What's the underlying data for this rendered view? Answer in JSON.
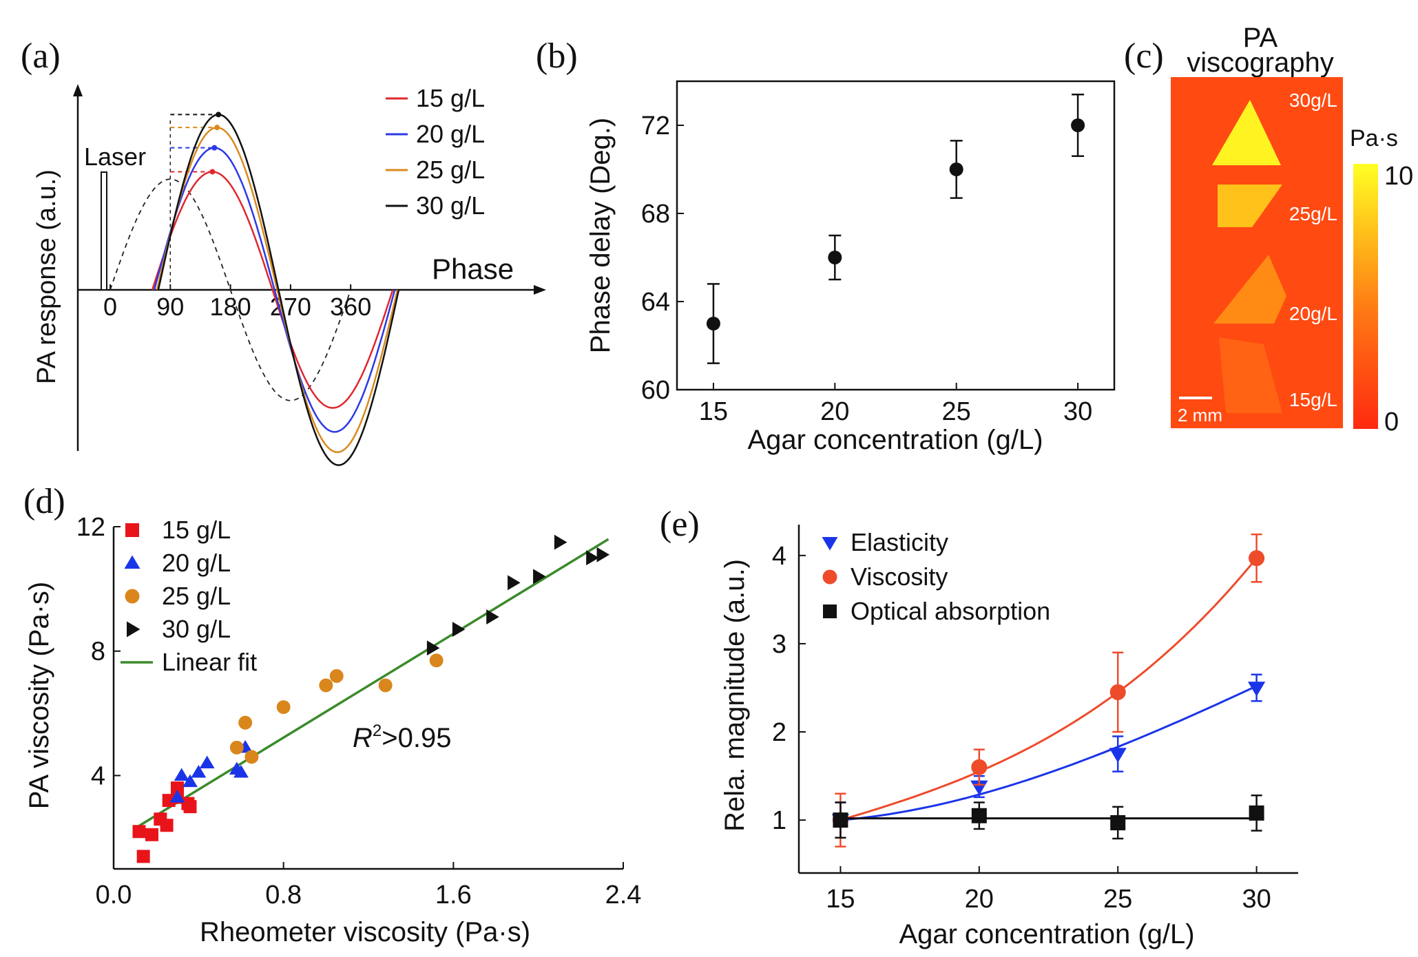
{
  "chart_data": [
    {
      "panel": "(a)",
      "type": "line",
      "ylabel": "PA response (a.u.)",
      "xlabel": "Phase",
      "xticks": [
        "0",
        "90",
        "180",
        "270",
        "360"
      ],
      "laser_label": "Laser",
      "series": [
        {
          "name": "15 g/L",
          "color": "#e0262e",
          "amplitude": 0.64,
          "phase_delay": 63
        },
        {
          "name": "20 g/L",
          "color": "#2b39e6",
          "amplitude": 0.77,
          "phase_delay": 66
        },
        {
          "name": "25 g/L",
          "color": "#d98a1c",
          "amplitude": 0.88,
          "phase_delay": 70
        },
        {
          "name": "30 g/L",
          "color": "#111111",
          "amplitude": 0.95,
          "phase_delay": 72
        }
      ],
      "reference": {
        "name": "excitation",
        "amplitude": 0.6,
        "style": "dashed"
      }
    },
    {
      "panel": "(b)",
      "type": "scatter",
      "xlabel": "Agar concentration (g/L)",
      "ylabel": "Phase delay (Deg.)",
      "x": [
        15,
        20,
        25,
        30
      ],
      "y": [
        63,
        66,
        70,
        72
      ],
      "yerr": [
        1.8,
        1.0,
        1.3,
        1.4
      ],
      "xticks": [
        "15",
        "20",
        "25",
        "30"
      ],
      "yticks": [
        "60",
        "64",
        "68",
        "72"
      ],
      "xlim": [
        13.5,
        31.5
      ],
      "ylim": [
        60,
        74
      ]
    },
    {
      "panel": "(c)",
      "type": "heatmap",
      "title_line1": "PA",
      "title_line2": "viscography",
      "regions": [
        {
          "label": "30g/L",
          "value": 9.5
        },
        {
          "label": "25g/L",
          "value": 7.5
        },
        {
          "label": "20g/L",
          "value": 5.2
        },
        {
          "label": "15g/L",
          "value": 3.2
        }
      ],
      "scalebar_label": "2 mm",
      "colorbar": {
        "unit": "Pa·s",
        "min_label": "0",
        "max_label": "10",
        "min": 0,
        "max": 10
      }
    },
    {
      "panel": "(d)",
      "type": "scatter",
      "xlabel": "Rheometer viscosity (Pa·s)",
      "ylabel": "PA viscosity (Pa·s)",
      "xticks": [
        "0.0",
        "0.8",
        "1.6",
        "2.4"
      ],
      "yticks": [
        "4",
        "8",
        "12"
      ],
      "xlim": [
        0,
        2.4
      ],
      "ylim": [
        1.0,
        12.0
      ],
      "annotation_R": "R",
      "annotation_sup": "2",
      "annotation_rest": ">0.95",
      "series": [
        {
          "name": "15 g/L",
          "marker": "square",
          "color": "#e8141a",
          "x": [
            0.12,
            0.14,
            0.18,
            0.22,
            0.25,
            0.26,
            0.3,
            0.3,
            0.35,
            0.36
          ],
          "y": [
            2.2,
            1.4,
            2.1,
            2.6,
            2.4,
            3.2,
            3.6,
            3.3,
            3.1,
            3.0
          ]
        },
        {
          "name": "20 g/L",
          "marker": "triangle-up",
          "color": "#1a35e8",
          "x": [
            0.3,
            0.32,
            0.36,
            0.4,
            0.44,
            0.58,
            0.6,
            0.62
          ],
          "y": [
            3.3,
            4.0,
            3.8,
            4.1,
            4.4,
            4.2,
            4.1,
            4.9
          ]
        },
        {
          "name": "25 g/L",
          "marker": "circle",
          "color": "#d9861c",
          "x": [
            0.58,
            0.62,
            0.65,
            0.8,
            1.0,
            1.05,
            1.28,
            1.52
          ],
          "y": [
            4.9,
            5.7,
            4.6,
            6.2,
            6.9,
            7.2,
            6.9,
            7.7
          ]
        },
        {
          "name": "30 g/L",
          "marker": "triangle-right",
          "color": "#111111",
          "x": [
            1.5,
            1.62,
            1.78,
            1.88,
            2.0,
            2.1,
            2.25,
            2.3
          ],
          "y": [
            8.1,
            8.7,
            9.1,
            10.2,
            10.4,
            11.5,
            11.0,
            11.1
          ]
        }
      ],
      "fit": {
        "name": "Linear fit",
        "color": "#3a8a2a",
        "x": [
          0.1,
          2.33
        ],
        "y": [
          2.3,
          11.6
        ]
      }
    },
    {
      "panel": "(e)",
      "type": "line",
      "xlabel": "Agar concentration (g/L)",
      "ylabel": "Rela. magnitude (a.u.)",
      "x": [
        15,
        20,
        25,
        30
      ],
      "xticks": [
        "15",
        "20",
        "25",
        "30"
      ],
      "yticks": [
        "1",
        "2",
        "3",
        "4"
      ],
      "xlim": [
        13.5,
        31.5
      ],
      "ylim": [
        0.4,
        4.35
      ],
      "series": [
        {
          "name": "Elasticity",
          "marker": "triangle-down",
          "color": "#1a35e8",
          "values": [
            1.0,
            1.38,
            1.75,
            2.5
          ],
          "err": [
            0.2,
            0.12,
            0.2,
            0.15
          ],
          "fit": [
            1.0,
            1.29,
            1.83,
            2.52
          ]
        },
        {
          "name": "Viscosity",
          "marker": "circle",
          "color": "#ee4b2b",
          "values": [
            1.0,
            1.6,
            2.45,
            3.97
          ],
          "err": [
            0.3,
            0.2,
            0.45,
            0.27
          ],
          "fit": [
            1.0,
            1.55,
            2.45,
            3.97
          ]
        },
        {
          "name": "Optical absorption",
          "marker": "square",
          "color": "#111111",
          "values": [
            1.0,
            1.05,
            0.97,
            1.08
          ],
          "err": [
            0.2,
            0.15,
            0.18,
            0.2
          ],
          "fit": [
            1.02,
            1.02,
            1.02,
            1.02
          ]
        }
      ]
    }
  ]
}
